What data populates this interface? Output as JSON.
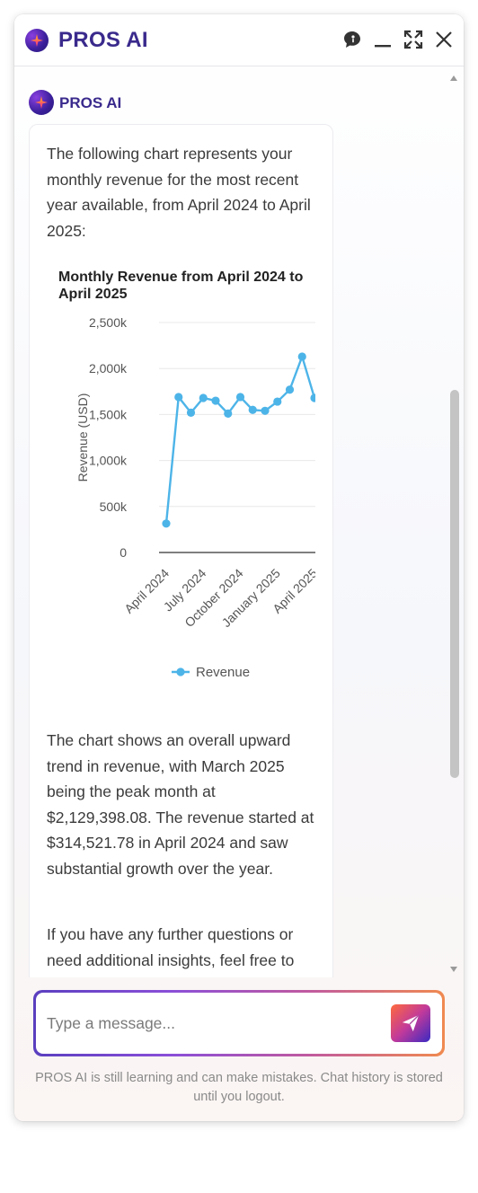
{
  "app": {
    "title": "PROS AI"
  },
  "header": {
    "icons": [
      "chat-bubble-icon",
      "minimize-icon",
      "expand-icon",
      "close-icon"
    ]
  },
  "message": {
    "sender": "PROS AI",
    "intro": "The following chart represents your monthly revenue for the most recent year available, from April 2024 to April 2025:",
    "summary": "The chart shows an overall upward trend in revenue, with March 2025 being the peak month at $2,129,398.08. The revenue started at $314,521.78 in April 2024 and saw substantial growth over the year.",
    "followup": "If you have any further questions or need additional insights, feel free to"
  },
  "chart_data": {
    "type": "line",
    "title": "Monthly Revenue from April 2024 to April 2025",
    "ylabel": "Revenue (USD)",
    "xlabel": "",
    "ylim": [
      0,
      2500000
    ],
    "y_ticks": [
      "0",
      "500k",
      "1,000k",
      "1,500k",
      "2,000k",
      "2,500k"
    ],
    "x_tick_labels": [
      "April 2024",
      "July 2024",
      "October 2024",
      "January 2025",
      "April 2025"
    ],
    "x": [
      "April 2024",
      "May 2024",
      "June 2024",
      "July 2024",
      "August 2024",
      "September 2024",
      "October 2024",
      "November 2024",
      "December 2024",
      "January 2025",
      "February 2025",
      "March 2025",
      "April 2025"
    ],
    "series": [
      {
        "name": "Revenue",
        "color": "#4db4e8",
        "values": [
          314521.78,
          1690000,
          1520000,
          1680000,
          1650000,
          1510000,
          1690000,
          1550000,
          1540000,
          1640000,
          1770000,
          2129398.08,
          1680000
        ]
      }
    ],
    "grid": true,
    "legend": "bottom"
  },
  "input": {
    "placeholder": "Type a message..."
  },
  "footer": {
    "disclaimer": "PROS AI is still learning and can make mistakes. Chat history is stored until you logout."
  },
  "colors": {
    "brand": "#3a2a8c",
    "line": "#4db4e8"
  }
}
